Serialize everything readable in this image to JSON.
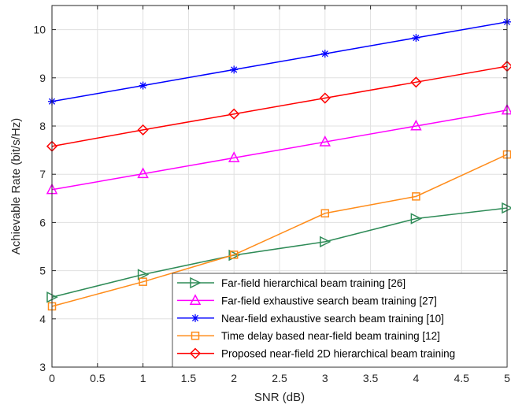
{
  "chart_data": {
    "type": "line",
    "title": "",
    "xlabel": "SNR (dB)",
    "ylabel": "Achievable Rate (bit/s/Hz)",
    "xlim": [
      0,
      5
    ],
    "ylim": [
      3,
      10.5
    ],
    "xticks": [
      "0",
      "0.5",
      "1",
      "1.5",
      "2",
      "2.5",
      "3",
      "3.5",
      "4",
      "4.5",
      "5"
    ],
    "yticks": [
      "3",
      "4",
      "5",
      "6",
      "7",
      "8",
      "9",
      "10"
    ],
    "grid": true,
    "legend_position": "bottom-right",
    "x": [
      0,
      1,
      2,
      3,
      4,
      5
    ],
    "series": [
      {
        "name": "Far-field hierarchical beam training [26]",
        "values": [
          4.45,
          4.92,
          5.32,
          5.6,
          6.08,
          6.3
        ],
        "color": "#2e8b57",
        "marker": "triangle-right"
      },
      {
        "name": "Far-field exhaustive search beam training [27]",
        "values": [
          6.68,
          7.01,
          7.34,
          7.67,
          8.0,
          8.33
        ],
        "color": "#ff00ff",
        "marker": "triangle-up"
      },
      {
        "name": "Near-field exhaustive search beam training [10]",
        "values": [
          8.51,
          8.84,
          9.17,
          9.5,
          9.83,
          10.16
        ],
        "color": "#0000ff",
        "marker": "asterisk"
      },
      {
        "name": "Time delay based near-field beam training [12]",
        "values": [
          4.26,
          4.77,
          5.33,
          6.19,
          6.54,
          7.41
        ],
        "color": "#ff8c1a",
        "marker": "square"
      },
      {
        "name": "Proposed near-field 2D hierarchical beam training",
        "values": [
          7.58,
          7.92,
          8.25,
          8.58,
          8.91,
          9.24
        ],
        "color": "#ff0000",
        "marker": "diamond"
      }
    ]
  }
}
